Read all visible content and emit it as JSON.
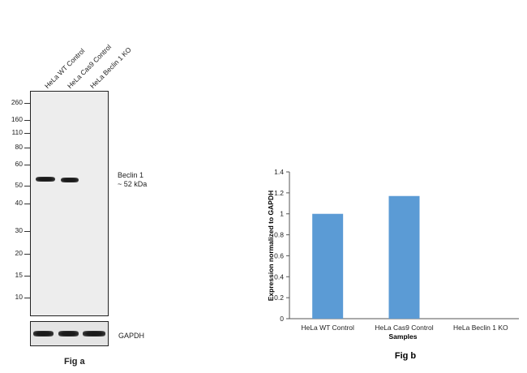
{
  "fig_a": {
    "lanes": [
      "HeLa WT Control",
      "HeLa Cas9 Control",
      "HeLa Beclin 1 KO"
    ],
    "markers": [
      "260",
      "160",
      "110",
      "80",
      "60",
      "50",
      "40",
      "30",
      "20",
      "15",
      "10"
    ],
    "band_label_line1": "Beclin 1",
    "band_label_line2": "~ 52 kDa",
    "loading_control": "GAPDH",
    "caption": "Fig a"
  },
  "chart_data": {
    "type": "bar",
    "categories": [
      "HeLa WT Control",
      "HeLa Cas9 Control",
      "HeLa Beclin 1 KO"
    ],
    "values": [
      1.0,
      1.17,
      0.0
    ],
    "xlabel": "Samples",
    "ylabel": "Expression normalized to GAPDH",
    "ylim": [
      0,
      1.4
    ],
    "yticks": [
      "0",
      "0.2",
      "0.4",
      "0.6",
      "0.8",
      "1",
      "1.2",
      "1.4"
    ],
    "bar_color": "#5b9bd5",
    "grid": false,
    "caption": "Fig b"
  }
}
